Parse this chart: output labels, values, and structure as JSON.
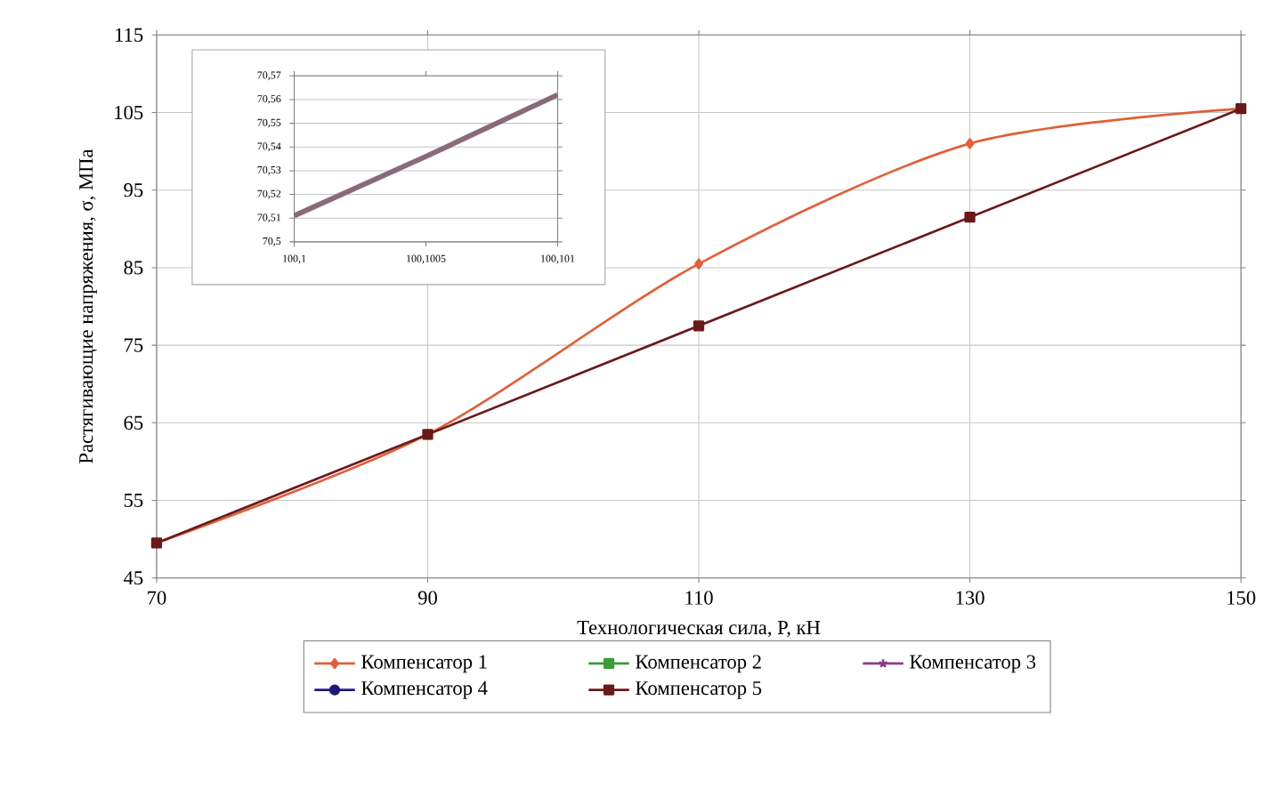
{
  "chart_data": [
    {
      "type": "line",
      "xlabel": "Технологическая сила, P, кН",
      "ylabel": "Растягивающие напряжения, σ, МПа",
      "x": [
        70,
        90,
        110,
        130,
        150
      ],
      "xlim": [
        70,
        150
      ],
      "xticks": [
        70,
        90,
        110,
        130,
        150
      ],
      "ylim": [
        45,
        115
      ],
      "yticks": [
        45,
        55,
        65,
        75,
        85,
        95,
        105,
        115
      ],
      "grid": true,
      "legend": "bottom",
      "series": [
        {
          "name": "Компенсатор 1",
          "color": "#e0603a",
          "marker": "diamond",
          "values": [
            49.5,
            63.5,
            85.5,
            101,
            105.5
          ]
        },
        {
          "name": "Компенсатор 2",
          "color": "#3a9a3a",
          "marker": "square",
          "values": [
            null,
            null,
            null,
            null,
            null
          ]
        },
        {
          "name": "Компенсатор 3",
          "color": "#8a3a8a",
          "marker": "star",
          "values": [
            null,
            null,
            null,
            null,
            null
          ]
        },
        {
          "name": "Компенсатор 4",
          "color": "#1a1a7a",
          "marker": "circle",
          "values": [
            null,
            null,
            null,
            null,
            null
          ]
        },
        {
          "name": "Компенсатор 5",
          "color": "#6a1a1a",
          "marker": "square",
          "values": [
            49.5,
            63.5,
            77.5,
            91.5,
            105.5
          ]
        }
      ]
    },
    {
      "type": "line",
      "categories": [
        "100,1",
        "100,1005",
        "100,101"
      ],
      "ylim": [
        70.5,
        70.57
      ],
      "yticks": [
        {
          "value": 70.5,
          "label": "70,5"
        },
        {
          "value": 70.51,
          "label": "70,51"
        },
        {
          "value": 70.52,
          "label": "70,52"
        },
        {
          "value": 70.53,
          "label": "70,53"
        },
        {
          "value": 70.54,
          "label": "70,54"
        },
        {
          "value": 70.55,
          "label": "70,55"
        },
        {
          "value": 70.56,
          "label": "70,56"
        },
        {
          "value": 70.57,
          "label": "70,57"
        }
      ],
      "grid": "y",
      "series": [
        {
          "color": "#8a6a7a",
          "values": [
            70.511,
            70.536,
            70.562
          ]
        }
      ]
    }
  ]
}
